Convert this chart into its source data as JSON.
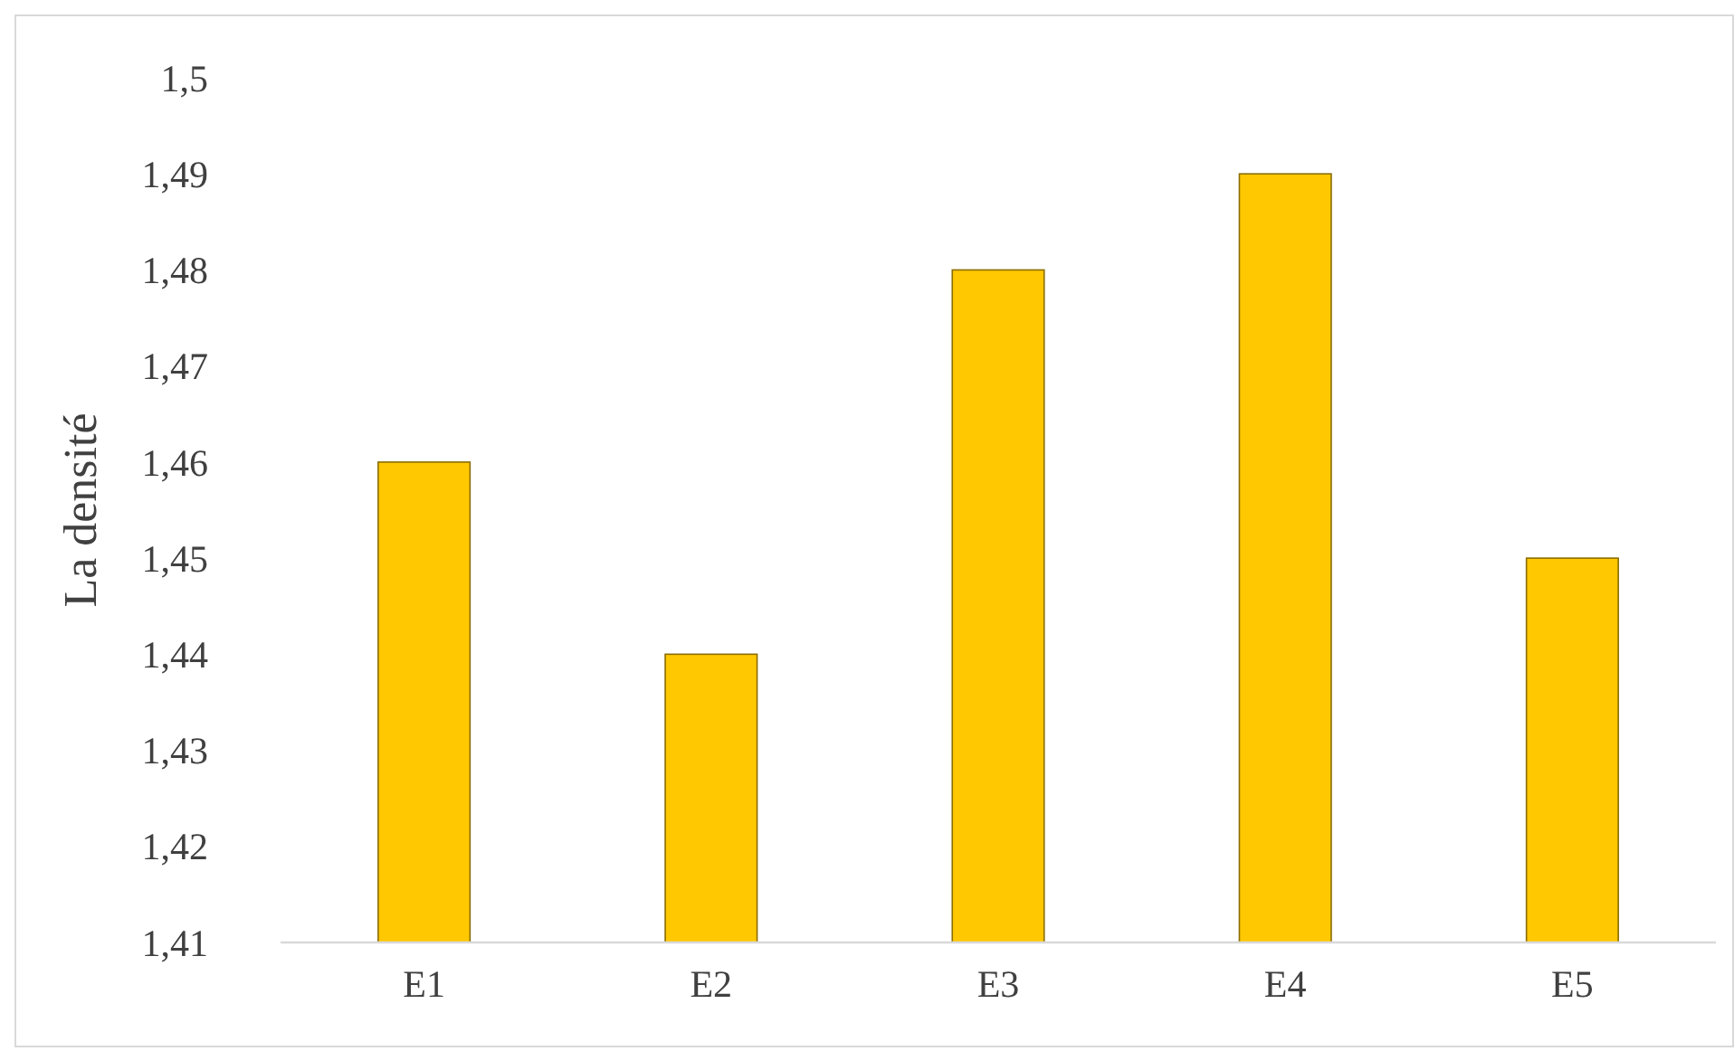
{
  "chart_data": {
    "type": "bar",
    "ylabel": "La densité",
    "categories": [
      "E1",
      "E2",
      "E3",
      "E4",
      "E5"
    ],
    "values": [
      1.46,
      1.44,
      1.48,
      1.49,
      1.45
    ],
    "color": "#ffc800",
    "ylim": [
      1.41,
      1.5
    ],
    "yticks": [
      {
        "value": 1.41,
        "label": "1,41"
      },
      {
        "value": 1.42,
        "label": "1,42"
      },
      {
        "value": 1.43,
        "label": "1,43"
      },
      {
        "value": 1.44,
        "label": "1,44"
      },
      {
        "value": 1.45,
        "label": "1,45"
      },
      {
        "value": 1.46,
        "label": "1,46"
      },
      {
        "value": 1.47,
        "label": "1,47"
      },
      {
        "value": 1.48,
        "label": "1,48"
      },
      {
        "value": 1.49,
        "label": "1,49"
      },
      {
        "value": 1.5,
        "label": "1,5"
      }
    ],
    "grid": false
  }
}
